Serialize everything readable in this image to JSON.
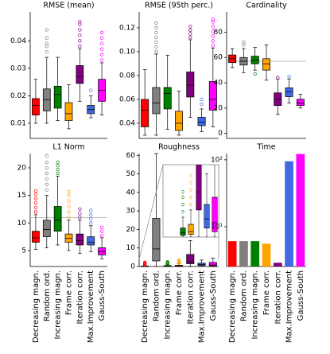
{
  "chart_data": [
    {
      "type": "box",
      "title": "RMSE (mean)",
      "ylim": [
        0.0045,
        0.0505
      ],
      "yticks": [
        0.01,
        0.02,
        0.03,
        0.04
      ],
      "boxes": [
        {
          "color": "#ff0000",
          "low": 0.01,
          "q1": 0.013,
          "median": 0.0165,
          "q3": 0.019,
          "high": 0.026,
          "outliers": []
        },
        {
          "color": "#808080",
          "low": 0.01,
          "q1": 0.0145,
          "median": 0.0185,
          "q3": 0.0225,
          "high": 0.034,
          "outliers": [
            0.036,
            0.038,
            0.039,
            0.041,
            0.044
          ]
        },
        {
          "color": "#008000",
          "low": 0.011,
          "q1": 0.0155,
          "median": 0.0205,
          "q3": 0.0235,
          "high": 0.034,
          "outliers": []
        },
        {
          "color": "#ffa500",
          "low": 0.008,
          "q1": 0.011,
          "median": 0.0135,
          "q3": 0.0175,
          "high": 0.024,
          "outliers": []
        },
        {
          "color": "#800080",
          "low": 0.018,
          "q1": 0.0245,
          "median": 0.027,
          "q3": 0.031,
          "high": 0.037,
          "outliers": [
            0.038,
            0.04,
            0.042,
            0.044,
            0.046,
            0.047
          ]
        },
        {
          "color": "#4169e1",
          "low": 0.012,
          "q1": 0.0135,
          "median": 0.015,
          "q3": 0.0165,
          "high": 0.02,
          "outliers": [
            0.022
          ]
        },
        {
          "color": "#ff00ff",
          "low": 0.013,
          "q1": 0.018,
          "median": 0.022,
          "q3": 0.026,
          "high": 0.032,
          "outliers": [
            0.033,
            0.035,
            0.037,
            0.039,
            0.041,
            0.043
          ]
        }
      ]
    },
    {
      "type": "box",
      "title": "RMSE (95th perc.)",
      "ylim": [
        0.0273,
        0.1333
      ],
      "yticks": [
        0.04,
        0.06,
        0.08,
        {
          "value": 0.1,
          "label": "0.10"
        },
        0.12
      ],
      "boxes": [
        {
          "color": "#ff0000",
          "low": 0.03,
          "q1": 0.037,
          "median": 0.051,
          "q3": 0.06,
          "high": 0.085,
          "outliers": []
        },
        {
          "color": "#808080",
          "low": 0.03,
          "q1": 0.048,
          "median": 0.057,
          "q3": 0.07,
          "high": 0.098,
          "outliers": [
            0.1,
            0.104,
            0.108,
            0.112,
            0.116,
            0.12,
            0.124
          ]
        },
        {
          "color": "#008000",
          "low": 0.035,
          "q1": 0.052,
          "median": 0.065,
          "q3": 0.07,
          "high": 0.097,
          "outliers": []
        },
        {
          "color": "#ffa500",
          "low": 0.03,
          "q1": 0.034,
          "median": 0.04,
          "q3": 0.05,
          "high": 0.067,
          "outliers": []
        },
        {
          "color": "#800080",
          "low": 0.045,
          "q1": 0.062,
          "median": 0.072,
          "q3": 0.083,
          "high": 0.11,
          "outliers": [
            0.112,
            0.115,
            0.118,
            0.121
          ]
        },
        {
          "color": "#4169e1",
          "low": 0.033,
          "q1": 0.038,
          "median": 0.041,
          "q3": 0.045,
          "high": 0.052,
          "outliers": [
            0.056,
            0.06
          ]
        },
        {
          "color": "#ff00ff",
          "low": 0.037,
          "q1": 0.051,
          "median": 0.06,
          "q3": 0.075,
          "high": 0.103,
          "outliers": [
            0.105,
            0.109,
            0.113,
            0.117,
            0.121,
            0.125,
            0.127
          ]
        }
      ]
    },
    {
      "type": "box",
      "title": "Cardinality",
      "ylim": [
        -4,
        96
      ],
      "yticks": [
        0,
        20,
        40,
        60,
        80
      ],
      "ref_line": 57,
      "boxes": [
        {
          "color": "#ff0000",
          "low": 52,
          "q1": 56,
          "median": 59,
          "q3": 62,
          "high": 67,
          "outliers": []
        },
        {
          "color": "#808080",
          "low": 48,
          "q1": 54,
          "median": 57,
          "q3": 60,
          "high": 67,
          "outliers": [
            70,
            72
          ]
        },
        {
          "color": "#008000",
          "low": 50,
          "q1": 55,
          "median": 58,
          "q3": 61,
          "high": 68,
          "outliers": [
            47
          ]
        },
        {
          "color": "#ffa500",
          "low": 42,
          "q1": 50,
          "median": 55,
          "q3": 59,
          "high": 70,
          "outliers": []
        },
        {
          "color": "#800080",
          "low": 15,
          "q1": 22,
          "median": 27,
          "q3": 32,
          "high": 43,
          "outliers": [
            44
          ]
        },
        {
          "color": "#4169e1",
          "low": 24,
          "q1": 29,
          "median": 33,
          "q3": 36,
          "high": 43,
          "outliers": [
            45
          ]
        },
        {
          "color": "#ff00ff",
          "low": 20,
          "q1": 22,
          "median": 24,
          "q3": 27,
          "high": 31,
          "outliers": []
        }
      ]
    },
    {
      "type": "box",
      "title": "L1 Norm",
      "ylim": [
        2.1,
        22.6
      ],
      "yticks": [
        5,
        10,
        15,
        20
      ],
      "ref_line": 11,
      "categories": [
        "Decreasing magn.",
        "Random ord.",
        "Increasing magn.",
        "Frame corr.",
        "Iteration corr.",
        "Max.Improvement",
        "Gauss-South"
      ],
      "boxes": [
        {
          "color": "#ff0000",
          "low": 5.2,
          "q1": 6.5,
          "median": 7.3,
          "q3": 8.5,
          "high": 11.5,
          "outliers": [
            12,
            12.8,
            13.6,
            14.4,
            15.2,
            15.8
          ]
        },
        {
          "color": "#808080",
          "low": 5.5,
          "q1": 7.5,
          "median": 8.8,
          "q3": 10.5,
          "high": 15,
          "outliers": [
            16,
            17,
            18,
            19,
            20,
            21,
            22.2
          ]
        },
        {
          "color": "#008000",
          "low": 6,
          "q1": 8.5,
          "median": 10.5,
          "q3": 13,
          "high": 18.5,
          "outliers": [
            19,
            19.7,
            20.4,
            21
          ]
        },
        {
          "color": "#ffa500",
          "low": 5,
          "q1": 6.5,
          "median": 7.2,
          "q3": 8,
          "high": 10.5,
          "outliers": [
            11,
            12,
            13,
            14,
            15,
            15.7
          ]
        },
        {
          "color": "#800080",
          "low": 4.5,
          "q1": 6,
          "median": 6.8,
          "q3": 8,
          "high": 10.5,
          "outliers": [
            11,
            11.7,
            12.5
          ]
        },
        {
          "color": "#4169e1",
          "low": 4.8,
          "q1": 6,
          "median": 6.5,
          "q3": 7.5,
          "high": 9.5,
          "outliers": [
            10,
            10.8,
            11.5,
            12.3
          ]
        },
        {
          "color": "#ff00ff",
          "low": 3.5,
          "q1": 4.2,
          "median": 4.8,
          "q3": 5.5,
          "high": 7.3,
          "outliers": [
            7.7,
            8.5,
            9.2
          ]
        }
      ]
    },
    {
      "type": "box",
      "title": "Roughness",
      "ylim": [
        0,
        61
      ],
      "yticks": [
        0,
        10,
        20,
        30,
        40,
        50,
        60
      ],
      "inset_ylim": [
        0,
        4
      ],
      "categories": [
        "Decreasing magn.",
        "Random ord.",
        "Increasing magn.",
        "Frame corr.",
        "Iteration corr.",
        "Max.Improvement",
        "Gauss-South"
      ],
      "boxes": [
        {
          "color": "#ff0000",
          "low": 0,
          "q1": 0.05,
          "median": 0.1,
          "q3": 0.25,
          "high": 0.6,
          "outliers": [
            1.0,
            1.3,
            1.6,
            1.9,
            2.2
          ]
        },
        {
          "color": "#808080",
          "low": 0,
          "q1": 3,
          "median": 9.5,
          "q3": 26,
          "high": 61,
          "outliers": []
        },
        {
          "color": "#008000",
          "low": 0,
          "q1": 0.1,
          "median": 0.25,
          "q3": 0.5,
          "high": 1.1,
          "outliers": [
            1.4,
            1.8,
            2.2,
            2.5
          ]
        },
        {
          "color": "#ffa500",
          "low": 0,
          "q1": 0.15,
          "median": 0.3,
          "q3": 0.7,
          "high": 1.5,
          "outliers": [
            1.8,
            2.2,
            2.6,
            3.0,
            3.4
          ]
        },
        {
          "color": "#800080",
          "low": 0,
          "q1": 1.5,
          "median": 2.5,
          "q3": 6.5,
          "high": 14,
          "outliers": []
        },
        {
          "color": "#4169e1",
          "low": 0,
          "q1": 0.5,
          "median": 1.0,
          "q3": 1.8,
          "high": 3.5,
          "outliers": []
        },
        {
          "color": "#ff00ff",
          "low": 0,
          "q1": 0.3,
          "median": 0.8,
          "q3": 2.2,
          "high": 4.5,
          "outliers": []
        }
      ]
    },
    {
      "type": "bar",
      "title": "Time",
      "log_scale": true,
      "ylim": [
        2.55,
        124
      ],
      "yticks": [
        {
          "value": 10,
          "label": "10¹"
        },
        {
          "value": 100,
          "label": "10²"
        }
      ],
      "categories": [
        "Decreasing magn.",
        "Random ord.",
        "Increasing magn.",
        "Frame corr.",
        "Iteration corr.",
        "Max.Improvement",
        "Gauss-South"
      ],
      "values": [
        6.1,
        6.1,
        6.1,
        5.6,
        2.9,
        95,
        122
      ],
      "colors": [
        "#ff0000",
        "#808080",
        "#008000",
        "#ffa500",
        "#800080",
        "#4169e1",
        "#ff00ff"
      ]
    }
  ]
}
